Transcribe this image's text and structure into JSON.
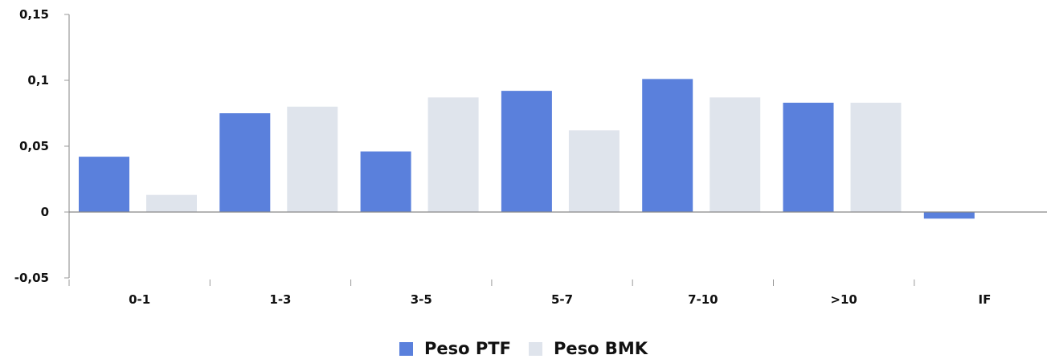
{
  "chart_data": {
    "type": "bar",
    "categories": [
      "0-1",
      "1-3",
      "3-5",
      "5-7",
      "7-10",
      ">10",
      "IF"
    ],
    "series": [
      {
        "name": "Peso PTF",
        "color": "#5a80dc",
        "values": [
          0.042,
          0.075,
          0.046,
          0.092,
          0.101,
          0.083,
          -0.005
        ]
      },
      {
        "name": "Peso BMK",
        "color": "#dfe4ec",
        "values": [
          0.013,
          0.08,
          0.087,
          0.062,
          0.087,
          0.083,
          0
        ]
      }
    ],
    "yticks": [
      -0.05,
      0,
      0.05,
      0.1,
      0.15
    ],
    "ytick_labels": [
      "-0,05",
      "0",
      "0,05",
      "0,1",
      "0,15"
    ],
    "ylim": [
      -0.05,
      0.15
    ],
    "legend_position": "bottom-center",
    "grid": false
  }
}
